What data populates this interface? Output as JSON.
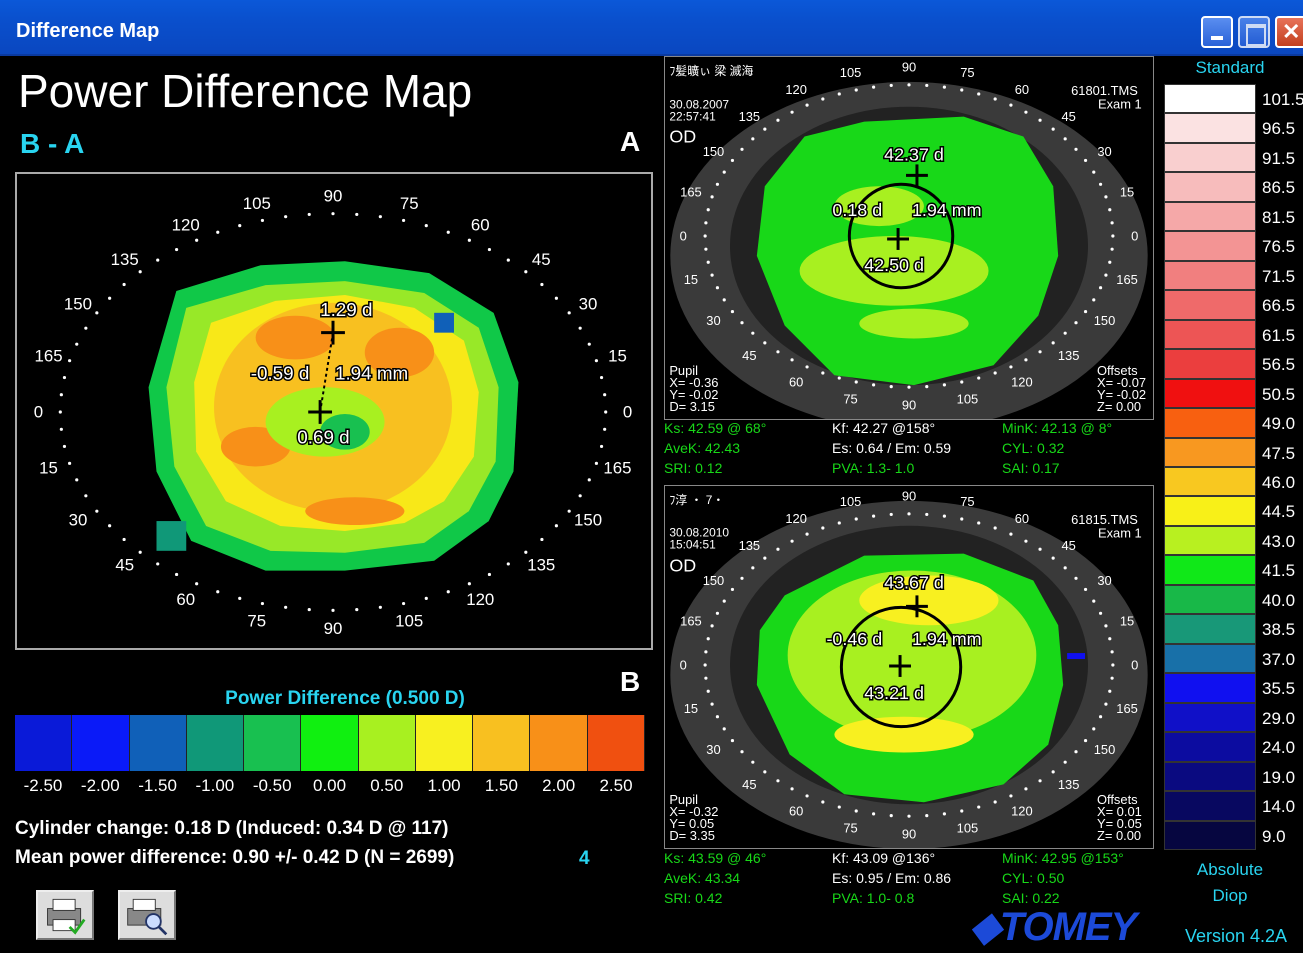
{
  "window": {
    "title": "Difference Map"
  },
  "heading": "Power Difference Map",
  "subheading": "B - A",
  "label_a": "A",
  "label_b": "B",
  "main_map": {
    "apex_top": "1.29 d",
    "apex_bottom": "0.69 d",
    "offset_label": "-0.59 d",
    "distance": "1.94 mm",
    "angles": [
      "90",
      "75",
      "60",
      "45",
      "30",
      "15",
      "0",
      "165",
      "150",
      "135",
      "120",
      "105",
      "90",
      "75",
      "60",
      "45",
      "30",
      "15",
      "0",
      "165",
      "150",
      "135",
      "120",
      "105"
    ]
  },
  "power_difference": {
    "title": "Power Difference (0.500 D)",
    "labels": [
      "-2.50",
      "-2.00",
      "-1.50",
      "-1.00",
      "-0.50",
      "0.00",
      "0.50",
      "1.00",
      "1.50",
      "2.00",
      "2.50"
    ],
    "colors": [
      "#0a1ad8",
      "#0a1af8",
      "#1060b8",
      "#109878",
      "#18c050",
      "#10f010",
      "#a8f020",
      "#f8f020",
      "#f8c020",
      "#f89018",
      "#f05010"
    ]
  },
  "stats": {
    "cylinder": "Cylinder change:  0.18 D (Induced:  0.34 D @ 117)",
    "mean": "Mean power difference:  0.90 +/-  0.42 D (N = 2699)",
    "mean_suffix": "4"
  },
  "exam_a": {
    "name_text": "ﾌ髪曠ぃ 梁 滅海",
    "date": "30.08.2007",
    "time": "22:57:41",
    "eye": "OD",
    "file": "61801.TMS",
    "exam": "Exam 1",
    "apex_top": "42.37 d",
    "apex_bottom": "42.50 d",
    "offset_label": "0.18 d",
    "distance": "1.94 mm",
    "pupil": [
      "Pupil",
      "X= -0.36",
      "Y= -0.02",
      "D=  3.15"
    ],
    "offsets": [
      "Offsets",
      "X= -0.07",
      "Y= -0.02",
      "Z=  0.00"
    ],
    "ks": "Ks: 42.59 @ 68°",
    "kf": "Kf: 42.27 @158°",
    "mink": "MinK: 42.13 @  8°",
    "avek": "AveK: 42.43",
    "es": "Es: 0.64 / Em: 0.59",
    "cyl": "CYL:  0.32",
    "sri": "SRI: 0.12",
    "pva": "PVA:   1.3-  1.0",
    "sai": "SAI: 0.17"
  },
  "exam_b": {
    "name_text": "ﾌ淳 ・ 7・",
    "date": "30.08.2010",
    "time": "15:04:51",
    "eye": "OD",
    "file": "61815.TMS",
    "exam": "Exam 1",
    "apex_top": "43.67 d",
    "apex_bottom": "43.21 d",
    "offset_label": "-0.46 d",
    "distance": "1.94 mm",
    "pupil": [
      "Pupil",
      "X= -0.32",
      "Y=  0.05",
      "D=  3.35"
    ],
    "offsets": [
      "Offsets",
      "X=  0.01",
      "Y=  0.05",
      "Z=  0.00"
    ],
    "ks": "Ks: 43.59 @ 46°",
    "kf": "Kf: 43.09 @136°",
    "mink": "MinK: 42.95 @153°",
    "avek": "AveK: 43.34",
    "es": "Es: 0.95 / Em: 0.86",
    "cyl": "CYL:  0.50",
    "sri": "SRI: 0.42",
    "pva": "PVA:   1.0-  0.8",
    "sai": "SAI: 0.22"
  },
  "legend": {
    "title": "Standard",
    "footer1": "Absolute",
    "footer2": "Diop",
    "values": [
      "101.5",
      "96.5",
      "91.5",
      "86.5",
      "81.5",
      "76.5",
      "71.5",
      "66.5",
      "61.5",
      "56.5",
      "50.5",
      "49.0",
      "47.5",
      "46.0",
      "44.5",
      "43.0",
      "41.5",
      "40.0",
      "38.5",
      "37.0",
      "35.5",
      "29.0",
      "24.0",
      "19.0",
      "14.0",
      "9.0"
    ],
    "colors": [
      "#ffffff",
      "#fbe2e2",
      "#f9cfcf",
      "#f7bcbc",
      "#f5a8a8",
      "#f39494",
      "#f17f7f",
      "#ef6a6a",
      "#ed5555",
      "#eb3e3e",
      "#f01010",
      "#f86010",
      "#f89820",
      "#f8c820",
      "#f8f018",
      "#b8f020",
      "#10e818",
      "#18b848",
      "#189878",
      "#1870a8",
      "#1010f0",
      "#1010c8",
      "#0c0ca0",
      "#0a0a80",
      "#080860",
      "#060640"
    ]
  },
  "brand": "TOMEY",
  "version": "Version 4.2A"
}
